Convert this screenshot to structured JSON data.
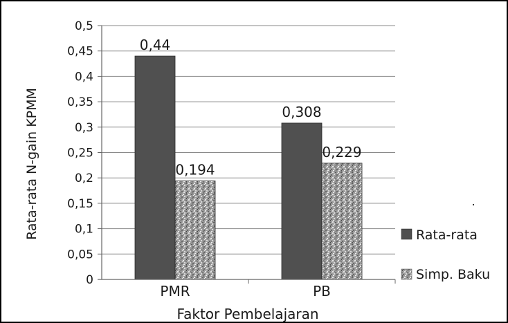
{
  "chart_data": {
    "type": "bar",
    "xlabel": "Faktor Pembelajaran",
    "ylabel": "Rata-rata N-gain KPMM",
    "categories": [
      "PMR",
      "PB"
    ],
    "series": [
      {
        "name": "Rata-rata",
        "values": [
          0.44,
          0.308
        ],
        "labels": [
          "0,44",
          "0,308"
        ],
        "color": "#505050",
        "pattern": "solid"
      },
      {
        "name": "Simp. Baku",
        "values": [
          0.194,
          0.229
        ],
        "labels": [
          "0,194",
          "0,229"
        ],
        "color": "#a0a0a0",
        "pattern": "speckle"
      }
    ],
    "ylim": [
      0,
      0.5
    ],
    "yticks": [
      0,
      0.05,
      0.1,
      0.15,
      0.2,
      0.25,
      0.3,
      0.35,
      0.4,
      0.45,
      0.5
    ],
    "ytick_labels": [
      "0",
      "0,05",
      "0,1",
      "0,15",
      "0,2",
      "0,25",
      "0,3",
      "0,35",
      "0,4",
      "0,45",
      "0,5"
    ],
    "grid": true,
    "legend_position": "right"
  }
}
